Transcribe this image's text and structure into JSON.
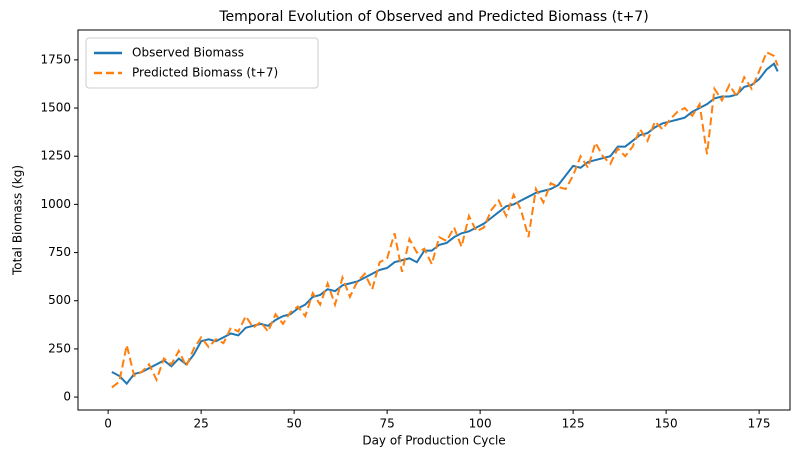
{
  "chart_data": {
    "type": "line",
    "title": "Temporal Evolution of Observed and Predicted Biomass (t+7)",
    "xlabel": "Day of Production Cycle",
    "ylabel": "Total Biomass (kg)",
    "x": [
      1,
      3,
      5,
      7,
      9,
      11,
      13,
      15,
      17,
      19,
      21,
      23,
      25,
      27,
      29,
      31,
      33,
      35,
      37,
      39,
      41,
      43,
      45,
      47,
      49,
      51,
      53,
      55,
      57,
      59,
      61,
      63,
      65,
      67,
      69,
      71,
      73,
      75,
      77,
      79,
      81,
      83,
      85,
      87,
      89,
      91,
      93,
      95,
      97,
      99,
      101,
      103,
      105,
      107,
      109,
      111,
      113,
      115,
      117,
      119,
      121,
      123,
      125,
      127,
      129,
      131,
      133,
      135,
      137,
      139,
      141,
      143,
      145,
      147,
      149,
      151,
      153,
      155,
      157,
      159,
      161,
      163,
      165,
      167,
      169,
      171,
      173,
      175,
      177,
      179,
      180
    ],
    "series": [
      {
        "name": "Observed Biomass",
        "color": "#1f77b4",
        "linestyle": "solid",
        "values": [
          130,
          110,
          70,
          120,
          130,
          150,
          170,
          190,
          160,
          200,
          170,
          220,
          290,
          300,
          290,
          310,
          330,
          320,
          360,
          370,
          380,
          370,
          400,
          420,
          430,
          460,
          480,
          520,
          530,
          560,
          550,
          580,
          590,
          600,
          620,
          640,
          660,
          670,
          700,
          710,
          720,
          700,
          760,
          760,
          790,
          800,
          830,
          850,
          860,
          880,
          900,
          930,
          960,
          990,
          1000,
          1020,
          1040,
          1060,
          1070,
          1080,
          1100,
          1150,
          1200,
          1190,
          1220,
          1230,
          1240,
          1250,
          1300,
          1300,
          1330,
          1360,
          1370,
          1400,
          1420,
          1430,
          1440,
          1450,
          1480,
          1500,
          1520,
          1550,
          1560,
          1560,
          1570,
          1610,
          1620,
          1650,
          1700,
          1730,
          1690
        ]
      },
      {
        "name": "Predicted Biomass (t+7)",
        "color": "#ff7f0e",
        "linestyle": "dashed",
        "values": [
          50,
          80,
          270,
          110,
          130,
          170,
          90,
          200,
          170,
          240,
          160,
          250,
          310,
          260,
          300,
          280,
          360,
          340,
          420,
          360,
          390,
          340,
          430,
          380,
          440,
          470,
          420,
          540,
          480,
          590,
          480,
          620,
          520,
          600,
          640,
          560,
          700,
          720,
          850,
          650,
          820,
          750,
          770,
          690,
          830,
          810,
          880,
          780,
          940,
          860,
          880,
          970,
          1020,
          940,
          1050,
          970,
          830,
          1080,
          1010,
          1110,
          1090,
          1080,
          1150,
          1250,
          1190,
          1320,
          1250,
          1210,
          1290,
          1250,
          1300,
          1390,
          1330,
          1430,
          1390,
          1440,
          1480,
          1500,
          1460,
          1520,
          1260,
          1600,
          1540,
          1620,
          1560,
          1660,
          1600,
          1690,
          1790,
          1770,
          1720
        ]
      }
    ],
    "xlim": [
      -8.1,
      183.3
    ],
    "xticks": [
      0,
      25,
      50,
      75,
      100,
      125,
      150,
      175
    ],
    "ylim": [
      -67,
      1905
    ],
    "yticks": [
      0,
      250,
      500,
      750,
      1000,
      1250,
      1500,
      1750
    ],
    "legend": "upper left",
    "grid": false
  }
}
